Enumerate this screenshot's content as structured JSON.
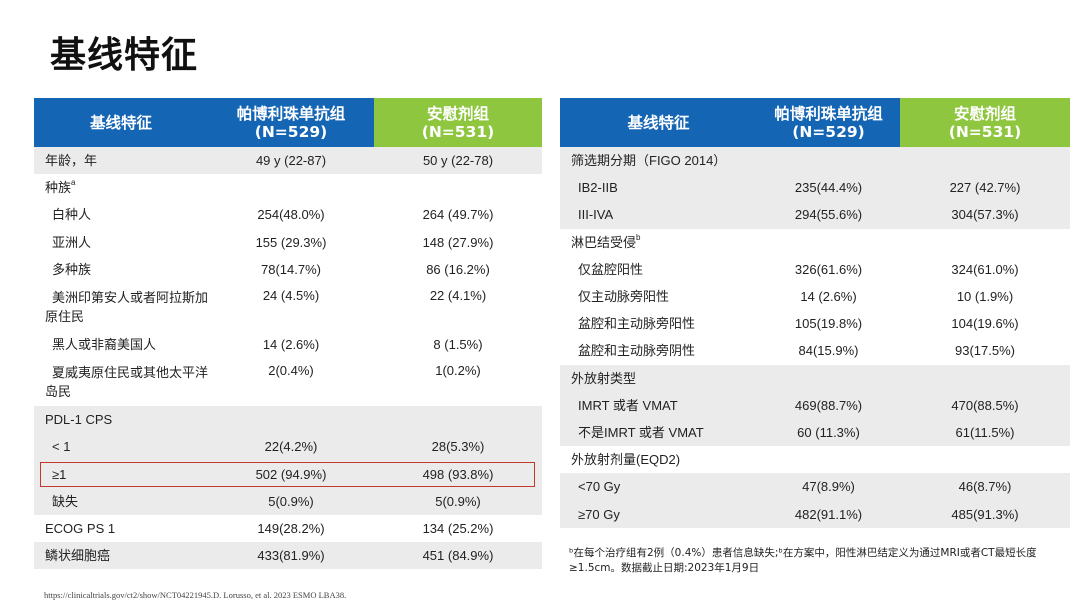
{
  "page_title": "基线特征",
  "left_table": {
    "headers": [
      {
        "line1": "基线特征",
        "line2": ""
      },
      {
        "line1": "帕博利珠单抗组",
        "line2": "(N=529)"
      },
      {
        "line1": "安慰剂组",
        "line2": "(N=531)"
      }
    ],
    "rows": [
      {
        "label": "年龄，年",
        "sup": "",
        "v1": "49 y (22-87)",
        "v2": "50 y (22-78)",
        "indent": false
      },
      {
        "label": "种族",
        "sup": "a",
        "v1": "",
        "v2": "",
        "indent": false
      },
      {
        "label": "白种人",
        "sup": "",
        "v1": "254(48.0%)",
        "v2": "264 (49.7%)",
        "indent": true
      },
      {
        "label": "亚洲人",
        "sup": "",
        "v1": "155 (29.3%)",
        "v2": "148 (27.9%)",
        "indent": true
      },
      {
        "label": "多种族",
        "sup": "",
        "v1": "78(14.7%)",
        "v2": "86 (16.2%)",
        "indent": true
      },
      {
        "label": "美洲印第安人或者阿拉斯加",
        "label2": "原住民",
        "sup": "",
        "v1": "24 (4.5%)",
        "v2": "22 (4.1%)",
        "indent": true
      },
      {
        "label": "黑人或非裔美国人",
        "sup": "",
        "v1": "14 (2.6%)",
        "v2": "8 (1.5%)",
        "indent": true
      },
      {
        "label": "夏威夷原住民或其他太平洋",
        "label2": "岛民",
        "sup": "",
        "v1": "2(0.4%)",
        "v2": "1(0.2%)",
        "indent": true
      },
      {
        "label": "PDL-1 CPS",
        "sup": "",
        "v1": "",
        "v2": "",
        "indent": false
      },
      {
        "label": "< 1",
        "sup": "",
        "v1": "22(4.2%)",
        "v2": "28(5.3%)",
        "indent": true
      },
      {
        "label": "≥1",
        "sup": "",
        "v1": "502 (94.9%)",
        "v2": "498 (93.8%)",
        "indent": true
      },
      {
        "label": "缺失",
        "sup": "",
        "v1": "5(0.9%)",
        "v2": "5(0.9%)",
        "indent": true
      },
      {
        "label": "ECOG PS 1",
        "sup": "",
        "v1": "149(28.2%)",
        "v2": "134 (25.2%)",
        "indent": false
      },
      {
        "label": "鳞状细胞癌",
        "sup": "",
        "v1": "433(81.9%)",
        "v2": "451 (84.9%)",
        "indent": false
      }
    ]
  },
  "right_table": {
    "headers": [
      {
        "line1": "基线特征",
        "line2": ""
      },
      {
        "line1": "帕博利珠单抗组",
        "line2": "(N=529)"
      },
      {
        "line1": "安慰剂组",
        "line2": "(N=531)"
      }
    ],
    "rows": [
      {
        "label": "筛选期分期（FIGO 2014）",
        "sup": "",
        "v1": "",
        "v2": "",
        "indent": false
      },
      {
        "label": "IB2-IIB",
        "sup": "",
        "v1": "235(44.4%)",
        "v2": "227 (42.7%)",
        "indent": true
      },
      {
        "label": "III-IVA",
        "sup": "",
        "v1": "294(55.6%)",
        "v2": "304(57.3%)",
        "indent": true
      },
      {
        "label": "淋巴结受侵",
        "sup": "b",
        "v1": "",
        "v2": "",
        "indent": false
      },
      {
        "label": "仅盆腔阳性",
        "sup": "",
        "v1": "326(61.6%)",
        "v2": "324(61.0%)",
        "indent": true
      },
      {
        "label": "仅主动脉旁阳性",
        "sup": "",
        "v1": "14 (2.6%)",
        "v2": "10 (1.9%)",
        "indent": true
      },
      {
        "label": "盆腔和主动脉旁阳性",
        "sup": "",
        "v1": "105(19.8%)",
        "v2": "104(19.6%)",
        "indent": true
      },
      {
        "label": "盆腔和主动脉旁阴性",
        "sup": "",
        "v1": "84(15.9%)",
        "v2": "93(17.5%)",
        "indent": true
      },
      {
        "label": "外放射类型",
        "sup": "",
        "v1": "",
        "v2": "",
        "indent": false
      },
      {
        "label": "IMRT 或者 VMAT",
        "sup": "",
        "v1": "469(88.7%)",
        "v2": "470(88.5%)",
        "indent": true
      },
      {
        "label": "不是IMRT 或者 VMAT",
        "sup": "",
        "v1": "60 (11.3%)",
        "v2": "61(11.5%)",
        "indent": true
      },
      {
        "label": "外放射剂量(EQD2)",
        "sup": "",
        "v1": "",
        "v2": "",
        "indent": false
      },
      {
        "label": "<70 Gy",
        "sup": "",
        "v1": "47(8.9%)",
        "v2": "46(8.7%)",
        "indent": true
      },
      {
        "label": "≥70 Gy",
        "sup": "",
        "v1": "482(91.1%)",
        "v2": "485(91.3%)",
        "indent": true
      }
    ]
  },
  "footnote_right": "ᵇ在每个治疗组有2例（0.4%）患者信息缺失;ᵇ在方案中，阳性淋巴结定义为通过MRI或者CT最短长度≥1.5cm。数据截止日期:2023年1月9日",
  "footnote_left": "https://clinicaltrials.gov/ct2/show/NCT04221945.D. Lorusso, et al. 2023 ESMO LBA38."
}
